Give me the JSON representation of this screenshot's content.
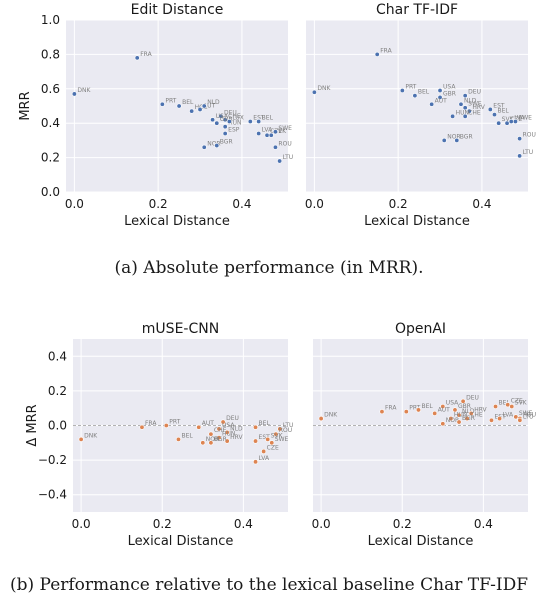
{
  "captions": {
    "a": "(a) Absolute performance (in MRR).",
    "b": "(b) Performance relative to the lexical baseline Char TF-IDF"
  },
  "colors": {
    "panel_bg": "#eaeaf2",
    "grid": "#ffffff",
    "blue": "#4c72b0",
    "orange": "#dd8452",
    "zero_line": "#999999"
  },
  "chart_data": [
    {
      "type": "scatter",
      "title": "Edit Distance",
      "xlabel": "Lexical Distance",
      "ylabel": "MRR",
      "xlim": [
        -0.02,
        0.51
      ],
      "ylim": [
        0.0,
        1.0
      ],
      "xticks": [
        "0.0",
        "0.2",
        "0.4"
      ],
      "yticks": [
        "0.0",
        "0.2",
        "0.4",
        "0.6",
        "0.8",
        "1.0"
      ],
      "grid": true,
      "color": "#4c72b0",
      "points": [
        {
          "label": "DNK",
          "x": 0.0,
          "y": 0.57
        },
        {
          "label": "FRA",
          "x": 0.15,
          "y": 0.78
        },
        {
          "label": "PRT",
          "x": 0.21,
          "y": 0.51
        },
        {
          "label": "BEL",
          "x": 0.25,
          "y": 0.5
        },
        {
          "label": "HGL",
          "x": 0.28,
          "y": 0.47
        },
        {
          "label": "AUT",
          "x": 0.3,
          "y": 0.48
        },
        {
          "label": "NLD",
          "x": 0.31,
          "y": 0.5
        },
        {
          "label": "DEU",
          "x": 0.35,
          "y": 0.44
        },
        {
          "label": "USA",
          "x": 0.33,
          "y": 0.42
        },
        {
          "label": "CHE",
          "x": 0.36,
          "y": 0.42
        },
        {
          "label": "GBR",
          "x": 0.34,
          "y": 0.4
        },
        {
          "label": "HUN",
          "x": 0.36,
          "y": 0.38
        },
        {
          "label": "LUX",
          "x": 0.37,
          "y": 0.41
        },
        {
          "label": "ESP",
          "x": 0.36,
          "y": 0.34
        },
        {
          "label": "NOR",
          "x": 0.31,
          "y": 0.26
        },
        {
          "label": "BGR",
          "x": 0.34,
          "y": 0.27
        },
        {
          "label": "EST",
          "x": 0.42,
          "y": 0.41
        },
        {
          "label": "BEL",
          "x": 0.44,
          "y": 0.41
        },
        {
          "label": "LVA",
          "x": 0.44,
          "y": 0.34
        },
        {
          "label": "CZE",
          "x": 0.46,
          "y": 0.33
        },
        {
          "label": "SVK",
          "x": 0.47,
          "y": 0.33
        },
        {
          "label": "SWE",
          "x": 0.48,
          "y": 0.35
        },
        {
          "label": "ROU",
          "x": 0.48,
          "y": 0.26
        },
        {
          "label": "LTU",
          "x": 0.49,
          "y": 0.18
        }
      ]
    },
    {
      "type": "scatter",
      "title": "Char TF-IDF",
      "xlabel": "Lexical Distance",
      "ylabel": "",
      "xlim": [
        -0.02,
        0.51
      ],
      "ylim": [
        0.0,
        1.0
      ],
      "xticks": [
        "0.0",
        "0.2",
        "0.4"
      ],
      "yticks": [],
      "grid": true,
      "color": "#4c72b0",
      "points": [
        {
          "label": "DNK",
          "x": 0.0,
          "y": 0.58
        },
        {
          "label": "FRA",
          "x": 0.15,
          "y": 0.8
        },
        {
          "label": "PRT",
          "x": 0.21,
          "y": 0.59
        },
        {
          "label": "BEL",
          "x": 0.24,
          "y": 0.56
        },
        {
          "label": "USA",
          "x": 0.3,
          "y": 0.59
        },
        {
          "label": "GBR",
          "x": 0.3,
          "y": 0.55
        },
        {
          "label": "AUT",
          "x": 0.28,
          "y": 0.51
        },
        {
          "label": "DEU",
          "x": 0.36,
          "y": 0.56
        },
        {
          "label": "NLD",
          "x": 0.35,
          "y": 0.51
        },
        {
          "label": "SWE",
          "x": 0.36,
          "y": 0.49
        },
        {
          "label": "HRV",
          "x": 0.37,
          "y": 0.47
        },
        {
          "label": "HUN",
          "x": 0.33,
          "y": 0.44
        },
        {
          "label": "CHE",
          "x": 0.36,
          "y": 0.44
        },
        {
          "label": "EST",
          "x": 0.42,
          "y": 0.48
        },
        {
          "label": "BEL",
          "x": 0.43,
          "y": 0.45
        },
        {
          "label": "SVK",
          "x": 0.44,
          "y": 0.4
        },
        {
          "label": "CZE",
          "x": 0.46,
          "y": 0.4
        },
        {
          "label": "LVA",
          "x": 0.47,
          "y": 0.41
        },
        {
          "label": "SWE",
          "x": 0.48,
          "y": 0.41
        },
        {
          "label": "NOR",
          "x": 0.31,
          "y": 0.3
        },
        {
          "label": "BGR",
          "x": 0.34,
          "y": 0.3
        },
        {
          "label": "ROU",
          "x": 0.49,
          "y": 0.31
        },
        {
          "label": "LTU",
          "x": 0.49,
          "y": 0.21
        }
      ]
    },
    {
      "type": "scatter",
      "title": "mUSE-CNN",
      "xlabel": "Lexical Distance",
      "ylabel": "Δ MRR",
      "xlim": [
        -0.02,
        0.51
      ],
      "ylim": [
        -0.5,
        0.5
      ],
      "xticks": [
        "0.0",
        "0.2",
        "0.4"
      ],
      "yticks": [
        "−0.4",
        "−0.2",
        "0.0",
        "0.2",
        "0.4"
      ],
      "grid": true,
      "zero_line": true,
      "color": "#dd8452",
      "points": [
        {
          "label": "DNK",
          "x": 0.0,
          "y": -0.08
        },
        {
          "label": "FRA",
          "x": 0.15,
          "y": -0.01
        },
        {
          "label": "PRT",
          "x": 0.21,
          "y": 0.0
        },
        {
          "label": "BEL",
          "x": 0.24,
          "y": -0.08
        },
        {
          "label": "AUT",
          "x": 0.29,
          "y": -0.01
        },
        {
          "label": "DEU",
          "x": 0.35,
          "y": 0.02
        },
        {
          "label": "USA",
          "x": 0.34,
          "y": -0.02
        },
        {
          "label": "CHE",
          "x": 0.32,
          "y": -0.05
        },
        {
          "label": "NLD",
          "x": 0.36,
          "y": -0.04
        },
        {
          "label": "HUN",
          "x": 0.34,
          "y": -0.07
        },
        {
          "label": "HRV",
          "x": 0.36,
          "y": -0.09
        },
        {
          "label": "NOR",
          "x": 0.3,
          "y": -0.1
        },
        {
          "label": "BGR",
          "x": 0.32,
          "y": -0.1
        },
        {
          "label": "BEL",
          "x": 0.43,
          "y": -0.01
        },
        {
          "label": "LTU",
          "x": 0.49,
          "y": -0.02
        },
        {
          "label": "ROU",
          "x": 0.48,
          "y": -0.05
        },
        {
          "label": "EST",
          "x": 0.43,
          "y": -0.09
        },
        {
          "label": "SVK",
          "x": 0.46,
          "y": -0.08
        },
        {
          "label": "SWE",
          "x": 0.47,
          "y": -0.1
        },
        {
          "label": "CZE",
          "x": 0.45,
          "y": -0.15
        },
        {
          "label": "LVA",
          "x": 0.43,
          "y": -0.21
        }
      ]
    },
    {
      "type": "scatter",
      "title": "OpenAI",
      "xlabel": "Lexical Distance",
      "ylabel": "",
      "xlim": [
        -0.02,
        0.51
      ],
      "ylim": [
        -0.5,
        0.5
      ],
      "xticks": [
        "0.0",
        "0.2",
        "0.4"
      ],
      "yticks": [],
      "grid": true,
      "zero_line": true,
      "color": "#dd8452",
      "points": [
        {
          "label": "DNK",
          "x": 0.0,
          "y": 0.04
        },
        {
          "label": "FRA",
          "x": 0.15,
          "y": 0.08
        },
        {
          "label": "PRT",
          "x": 0.21,
          "y": 0.08
        },
        {
          "label": "BEL",
          "x": 0.24,
          "y": 0.09
        },
        {
          "label": "USA",
          "x": 0.3,
          "y": 0.11
        },
        {
          "label": "AUT",
          "x": 0.28,
          "y": 0.07
        },
        {
          "label": "DEU",
          "x": 0.35,
          "y": 0.14
        },
        {
          "label": "GBR",
          "x": 0.33,
          "y": 0.09
        },
        {
          "label": "NLD",
          "x": 0.34,
          "y": 0.06
        },
        {
          "label": "HRV",
          "x": 0.37,
          "y": 0.07
        },
        {
          "label": "CHE",
          "x": 0.36,
          "y": 0.04
        },
        {
          "label": "HUN",
          "x": 0.32,
          "y": 0.04
        },
        {
          "label": "NOR",
          "x": 0.3,
          "y": 0.01
        },
        {
          "label": "BGR",
          "x": 0.34,
          "y": 0.02
        },
        {
          "label": "BEL",
          "x": 0.43,
          "y": 0.11
        },
        {
          "label": "CZE",
          "x": 0.46,
          "y": 0.12
        },
        {
          "label": "SVK",
          "x": 0.47,
          "y": 0.11
        },
        {
          "label": "EST",
          "x": 0.42,
          "y": 0.03
        },
        {
          "label": "LVA",
          "x": 0.44,
          "y": 0.04
        },
        {
          "label": "SWE",
          "x": 0.48,
          "y": 0.05
        },
        {
          "label": "ROU",
          "x": 0.49,
          "y": 0.04
        },
        {
          "label": "LTU",
          "x": 0.49,
          "y": 0.03
        }
      ]
    }
  ]
}
